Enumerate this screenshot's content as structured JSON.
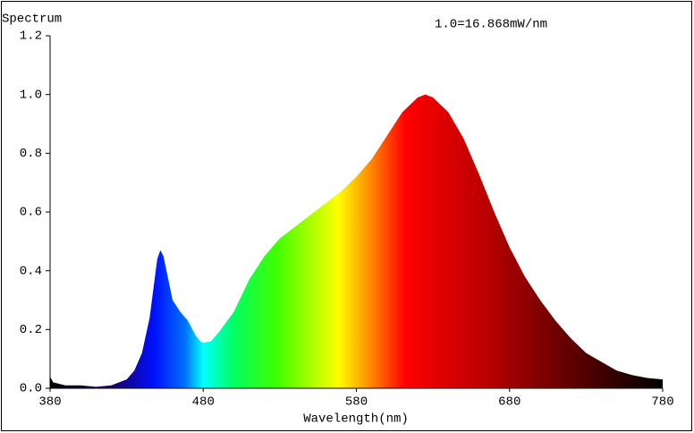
{
  "chart_data": {
    "type": "area",
    "title": "Spectrum",
    "annotation": "1.0=16.868mW/nm",
    "x_label": "Wavelength(nm)",
    "x": [
      380,
      382,
      390,
      400,
      410,
      420,
      430,
      435,
      440,
      445,
      448,
      450,
      452,
      454,
      456,
      460,
      465,
      470,
      475,
      478,
      480,
      485,
      490,
      500,
      510,
      520,
      530,
      540,
      550,
      560,
      570,
      580,
      590,
      600,
      610,
      620,
      625,
      630,
      640,
      650,
      660,
      670,
      680,
      690,
      700,
      710,
      720,
      730,
      740,
      750,
      760,
      770,
      780
    ],
    "y": [
      0.04,
      0.02,
      0.01,
      0.01,
      0.005,
      0.01,
      0.03,
      0.06,
      0.12,
      0.24,
      0.36,
      0.44,
      0.47,
      0.45,
      0.4,
      0.3,
      0.26,
      0.23,
      0.18,
      0.16,
      0.155,
      0.16,
      0.19,
      0.26,
      0.37,
      0.45,
      0.51,
      0.55,
      0.59,
      0.63,
      0.67,
      0.72,
      0.78,
      0.86,
      0.94,
      0.99,
      1.0,
      0.99,
      0.94,
      0.85,
      0.73,
      0.6,
      0.48,
      0.38,
      0.3,
      0.23,
      0.17,
      0.12,
      0.09,
      0.06,
      0.045,
      0.035,
      0.03
    ],
    "xlim": [
      380,
      780
    ],
    "ylim": [
      0,
      1.2
    ],
    "xticks": [
      380,
      480,
      580,
      680,
      780
    ],
    "yticks": [
      {
        "value": 0,
        "label": "0.0"
      },
      0.2,
      0.4,
      0.6,
      0.8,
      {
        "value": 1,
        "label": "1.0"
      },
      1.2
    ]
  }
}
